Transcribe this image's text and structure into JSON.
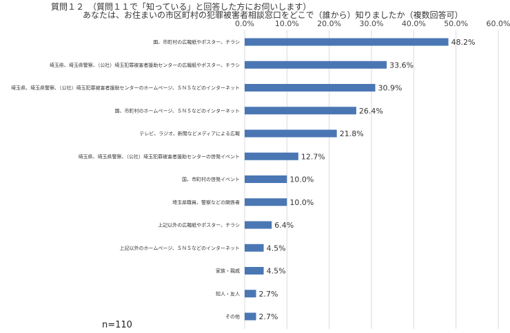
{
  "chart_data": {
    "type": "bar",
    "orientation": "horizontal",
    "title_line1": "質問１２　（質問１１で「知っている」と回答した方にお伺いします）",
    "title_line2": "あなたは、お住まいの市区町村の犯罪被害者相談窓口をどこで（誰から）知りましたか（複数回答可）",
    "xlim": [
      0,
      60
    ],
    "x_ticks": [
      "0.0%",
      "10.0%",
      "20.0%",
      "30.0%",
      "40.0%",
      "50.0%",
      "60.0%"
    ],
    "grid": true,
    "bar_color": "#4a77b4",
    "categories": [
      "国、市町村の広報紙やポスター、チラシ",
      "埼玉県、埼玉県警察、（公社）埼玉犯罪被害者援助センターの広報紙やポスター、チラシ",
      "埼玉県、埼玉県警察、（公社）埼玉犯罪被害者援助センターのホームページ、ＳＮＳなどのインターネット",
      "国、市町村のホームページ、ＳＮＳなどのインターネット",
      "テレビ、ラジオ、新聞などメディアによる広報",
      "埼玉県、埼玉県警察、（公社）埼玉犯罪被害者援助センターの啓発イベント",
      "国、市町村の啓発イベント",
      "埼玉県職員、警察などの関係者",
      "上記以外の広報紙やポスター、チラシ",
      "上記以外のホームページ、ＳＮＳなどのインターネット",
      "家族・親戚",
      "知人・友人",
      "その他"
    ],
    "values": [
      48.2,
      33.6,
      30.9,
      26.4,
      21.8,
      12.7,
      10.0,
      10.0,
      6.4,
      4.5,
      4.5,
      2.7,
      2.7
    ],
    "value_labels": [
      "48.2%",
      "33.6%",
      "30.9%",
      "26.4%",
      "21.8%",
      "12.7%",
      "10.0%",
      "10.0%",
      "6.4%",
      "4.5%",
      "4.5%",
      "2.7%",
      "2.7%"
    ]
  },
  "footer": {
    "n_label": "n=110"
  }
}
